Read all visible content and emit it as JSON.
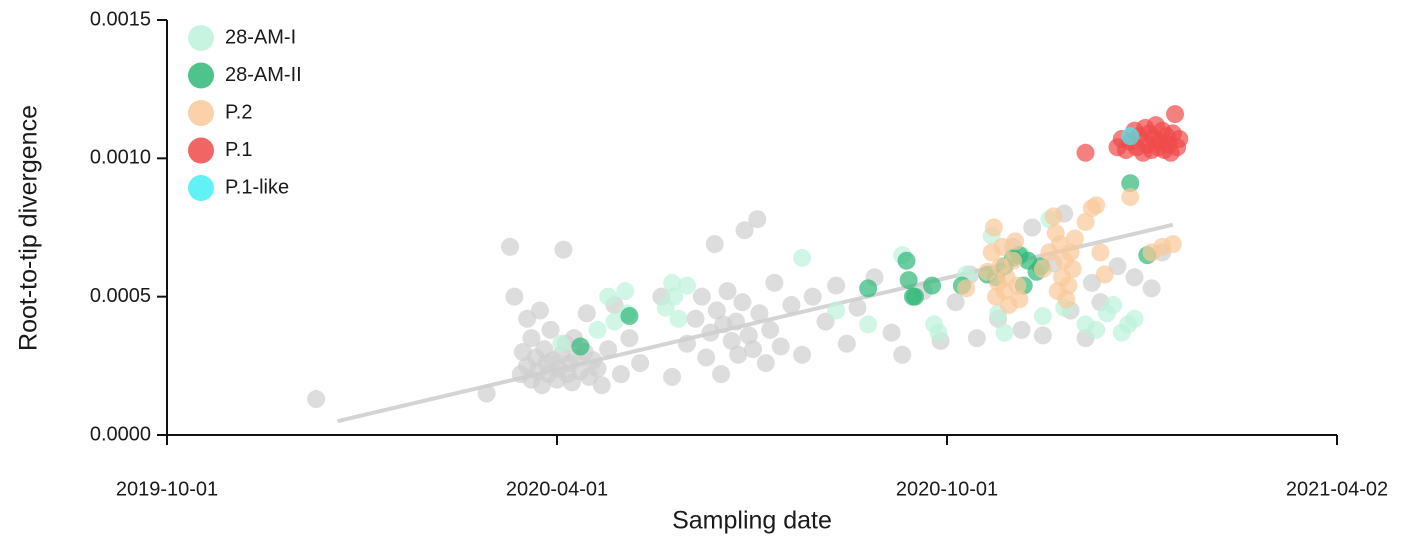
{
  "chart_data": {
    "type": "scatter",
    "x_label": "Sampling date",
    "y_label": "Root-to-tip divergence",
    "xlim": [
      "2019-10-01",
      "2021-04-02"
    ],
    "xticks": [
      "2019-10-01",
      "2020-04-01",
      "2020-10-01",
      "2021-04-02"
    ],
    "ylim": [
      0,
      0.0015
    ],
    "yticks": [
      {
        "value": 0,
        "label": "0.0000"
      },
      {
        "value": 0.0005,
        "label": "0.0005"
      },
      {
        "value": 0.001,
        "label": "0.0010"
      },
      {
        "value": 0.0015,
        "label": "0.0015"
      }
    ],
    "legend": "upper left",
    "trendline": {
      "color": "#d4d4d4",
      "x": [
        "2019-12-20",
        "2021-01-15"
      ],
      "y": [
        5e-05,
        0.00076
      ]
    },
    "series": [
      {
        "color": "#cfcfcf",
        "x": [
          "2019-12-10",
          "2020-02-28",
          "2020-03-10",
          "2020-03-12",
          "2020-03-15",
          "2020-03-16",
          "2020-03-18",
          "2020-03-18",
          "2020-03-20",
          "2020-03-20",
          "2020-03-22",
          "2020-03-23",
          "2020-03-24",
          "2020-03-25",
          "2020-03-26",
          "2020-03-27",
          "2020-03-28",
          "2020-03-29",
          "2020-03-30",
          "2020-04-01",
          "2020-04-02",
          "2020-04-03",
          "2020-04-04",
          "2020-04-05",
          "2020-04-06",
          "2020-04-07",
          "2020-04-08",
          "2020-04-09",
          "2020-04-10",
          "2020-04-12",
          "2020-04-14",
          "2020-04-15",
          "2020-04-16",
          "2020-04-18",
          "2020-04-20",
          "2020-04-22",
          "2020-04-25",
          "2020-04-28",
          "2020-05-01",
          "2020-05-05",
          "2020-05-10",
          "2020-05-20",
          "2020-05-25",
          "2020-06-01",
          "2020-06-05",
          "2020-06-08",
          "2020-06-10",
          "2020-06-12",
          "2020-06-14",
          "2020-06-15",
          "2020-06-17",
          "2020-06-18",
          "2020-06-20",
          "2020-06-22",
          "2020-06-24",
          "2020-06-25",
          "2020-06-27",
          "2020-06-28",
          "2020-06-30",
          "2020-07-02",
          "2020-07-04",
          "2020-07-05",
          "2020-07-08",
          "2020-07-10",
          "2020-07-12",
          "2020-07-15",
          "2020-07-20",
          "2020-07-25",
          "2020-07-30",
          "2020-08-05",
          "2020-08-10",
          "2020-08-15",
          "2020-08-20",
          "2020-08-28",
          "2020-09-05",
          "2020-09-10",
          "2020-09-20",
          "2020-09-28",
          "2020-10-05",
          "2020-10-12",
          "2020-10-15",
          "2020-10-25",
          "2020-11-01",
          "2020-11-05",
          "2020-11-10",
          "2020-11-15",
          "2020-11-20",
          "2020-11-25",
          "2020-11-28",
          "2020-12-05",
          "2020-12-08",
          "2020-12-12",
          "2020-12-20",
          "2020-12-28",
          "2021-01-05",
          "2021-01-10"
        ],
        "y": [
          0.00013,
          0.00015,
          0.00068,
          0.0005,
          0.00022,
          0.0003,
          0.00025,
          0.00042,
          0.0002,
          0.00035,
          0.00028,
          0.00023,
          0.00045,
          0.00018,
          0.00031,
          0.00026,
          0.00022,
          0.00038,
          0.00027,
          0.0002,
          0.00024,
          0.00029,
          0.00067,
          0.00033,
          0.00022,
          0.00026,
          0.00019,
          0.00035,
          0.00028,
          0.00023,
          0.0003,
          0.00044,
          0.00021,
          0.00027,
          0.00024,
          0.00018,
          0.00031,
          0.00047,
          0.00022,
          0.00035,
          0.00026,
          0.0005,
          0.00021,
          0.00033,
          0.00042,
          0.0005,
          0.00028,
          0.00037,
          0.00069,
          0.00045,
          0.00022,
          0.0004,
          0.00052,
          0.00034,
          0.00041,
          0.00029,
          0.00048,
          0.00074,
          0.00036,
          0.00031,
          0.00078,
          0.00044,
          0.00026,
          0.00038,
          0.00055,
          0.00032,
          0.00047,
          0.00029,
          0.0005,
          0.00041,
          0.00054,
          0.00033,
          0.00046,
          0.00057,
          0.00037,
          0.00029,
          0.00052,
          0.00034,
          0.00048,
          0.00058,
          0.00035,
          0.00042,
          0.00068,
          0.00038,
          0.00075,
          0.00036,
          0.00062,
          0.0008,
          0.00045,
          0.00035,
          0.00055,
          0.00048,
          0.00061,
          0.00057,
          0.00053,
          0.00066
        ]
      },
      {
        "name": "28-AM-I",
        "color": "#bdf2dc",
        "x": [
          "2020-04-03",
          "2020-04-20",
          "2020-04-25",
          "2020-04-28",
          "2020-05-03",
          "2020-05-04",
          "2020-05-22",
          "2020-05-25",
          "2020-05-26",
          "2020-05-28",
          "2020-06-01",
          "2020-07-25",
          "2020-08-10",
          "2020-08-25",
          "2020-09-10",
          "2020-09-25",
          "2020-09-27",
          "2020-10-10",
          "2020-10-22",
          "2020-10-25",
          "2020-10-28",
          "2020-11-05",
          "2020-11-15",
          "2020-11-18",
          "2020-11-25",
          "2020-12-05",
          "2020-12-10",
          "2020-12-15",
          "2020-12-18",
          "2020-12-22",
          "2020-12-25",
          "2020-12-28"
        ],
        "y": [
          0.00033,
          0.00038,
          0.0005,
          0.00041,
          0.00052,
          0.00044,
          0.00046,
          0.00055,
          0.0005,
          0.00042,
          0.00054,
          0.00064,
          0.00045,
          0.0004,
          0.00065,
          0.0004,
          0.00037,
          0.00058,
          0.00072,
          0.00044,
          0.00037,
          0.00065,
          0.00043,
          0.00078,
          0.00046,
          0.0004,
          0.00038,
          0.00044,
          0.00047,
          0.00037,
          0.0004,
          0.00042
        ]
      },
      {
        "name": "28-AM-II",
        "color": "#2fb877",
        "x": [
          "2020-04-12",
          "2020-05-05",
          "2020-08-25",
          "2020-09-12",
          "2020-09-13",
          "2020-09-15",
          "2020-09-16",
          "2020-09-24",
          "2020-10-08",
          "2020-10-20",
          "2020-10-24",
          "2020-10-28",
          "2020-11-01",
          "2020-11-04",
          "2020-11-06",
          "2020-11-08",
          "2020-11-12",
          "2020-11-14",
          "2020-12-26",
          "2021-01-03"
        ],
        "y": [
          0.00032,
          0.00043,
          0.00053,
          0.00063,
          0.00056,
          0.0005,
          0.0005,
          0.00054,
          0.00054,
          0.00058,
          0.00057,
          0.00061,
          0.00064,
          0.00065,
          0.00054,
          0.00063,
          0.00059,
          0.00061,
          0.00091,
          0.00065
        ]
      },
      {
        "name": "P.2",
        "color": "#f9c99a",
        "x": [
          "2020-10-10",
          "2020-10-20",
          "2020-10-22",
          "2020-10-23",
          "2020-10-24",
          "2020-10-25",
          "2020-10-26",
          "2020-10-27",
          "2020-10-28",
          "2020-10-29",
          "2020-10-30",
          "2020-11-01",
          "2020-11-02",
          "2020-11-03",
          "2020-11-04",
          "2020-11-15",
          "2020-11-18",
          "2020-11-20",
          "2020-11-21",
          "2020-11-22",
          "2020-11-23",
          "2020-11-24",
          "2020-11-25",
          "2020-11-26",
          "2020-11-27",
          "2020-11-28",
          "2020-11-29",
          "2020-11-30",
          "2020-12-05",
          "2020-12-08",
          "2020-12-10",
          "2020-12-12",
          "2020-12-14",
          "2020-12-26",
          "2021-01-05",
          "2021-01-10",
          "2021-01-15"
        ],
        "y": [
          0.00053,
          0.00059,
          0.00066,
          0.00075,
          0.0005,
          0.00055,
          0.00061,
          0.00068,
          0.00052,
          0.00057,
          0.00047,
          0.00063,
          0.0007,
          0.00054,
          0.00049,
          0.0006,
          0.00066,
          0.00079,
          0.00073,
          0.00052,
          0.00069,
          0.00057,
          0.00063,
          0.00049,
          0.00054,
          0.00066,
          0.0006,
          0.00071,
          0.00077,
          0.00082,
          0.00083,
          0.00066,
          0.00058,
          0.00086,
          0.00066,
          0.00068,
          0.00069
        ]
      },
      {
        "name": "P.1",
        "color": "#f04a4a",
        "x": [
          "2020-12-05",
          "2020-12-20",
          "2020-12-22",
          "2020-12-24",
          "2020-12-26",
          "2020-12-28",
          "2020-12-29",
          "2020-12-30",
          "2021-01-01",
          "2021-01-02",
          "2021-01-03",
          "2021-01-04",
          "2021-01-05",
          "2021-01-06",
          "2021-01-07",
          "2021-01-08",
          "2021-01-09",
          "2021-01-10",
          "2021-01-11",
          "2021-01-12",
          "2021-01-13",
          "2021-01-14",
          "2021-01-15",
          "2021-01-16",
          "2021-01-17",
          "2021-01-18"
        ],
        "y": [
          0.00102,
          0.00104,
          0.00107,
          0.00103,
          0.00106,
          0.0011,
          0.00104,
          0.00108,
          0.00102,
          0.00111,
          0.00105,
          0.00109,
          0.00103,
          0.00107,
          0.00112,
          0.00104,
          0.00106,
          0.0011,
          0.00103,
          0.00108,
          0.00105,
          0.00102,
          0.00109,
          0.00116,
          0.00104,
          0.00107
        ]
      },
      {
        "name": "P.1-like",
        "color": "#45f0f5",
        "x": [
          "2020-12-26"
        ],
        "y": [
          0.00108
        ]
      }
    ]
  }
}
